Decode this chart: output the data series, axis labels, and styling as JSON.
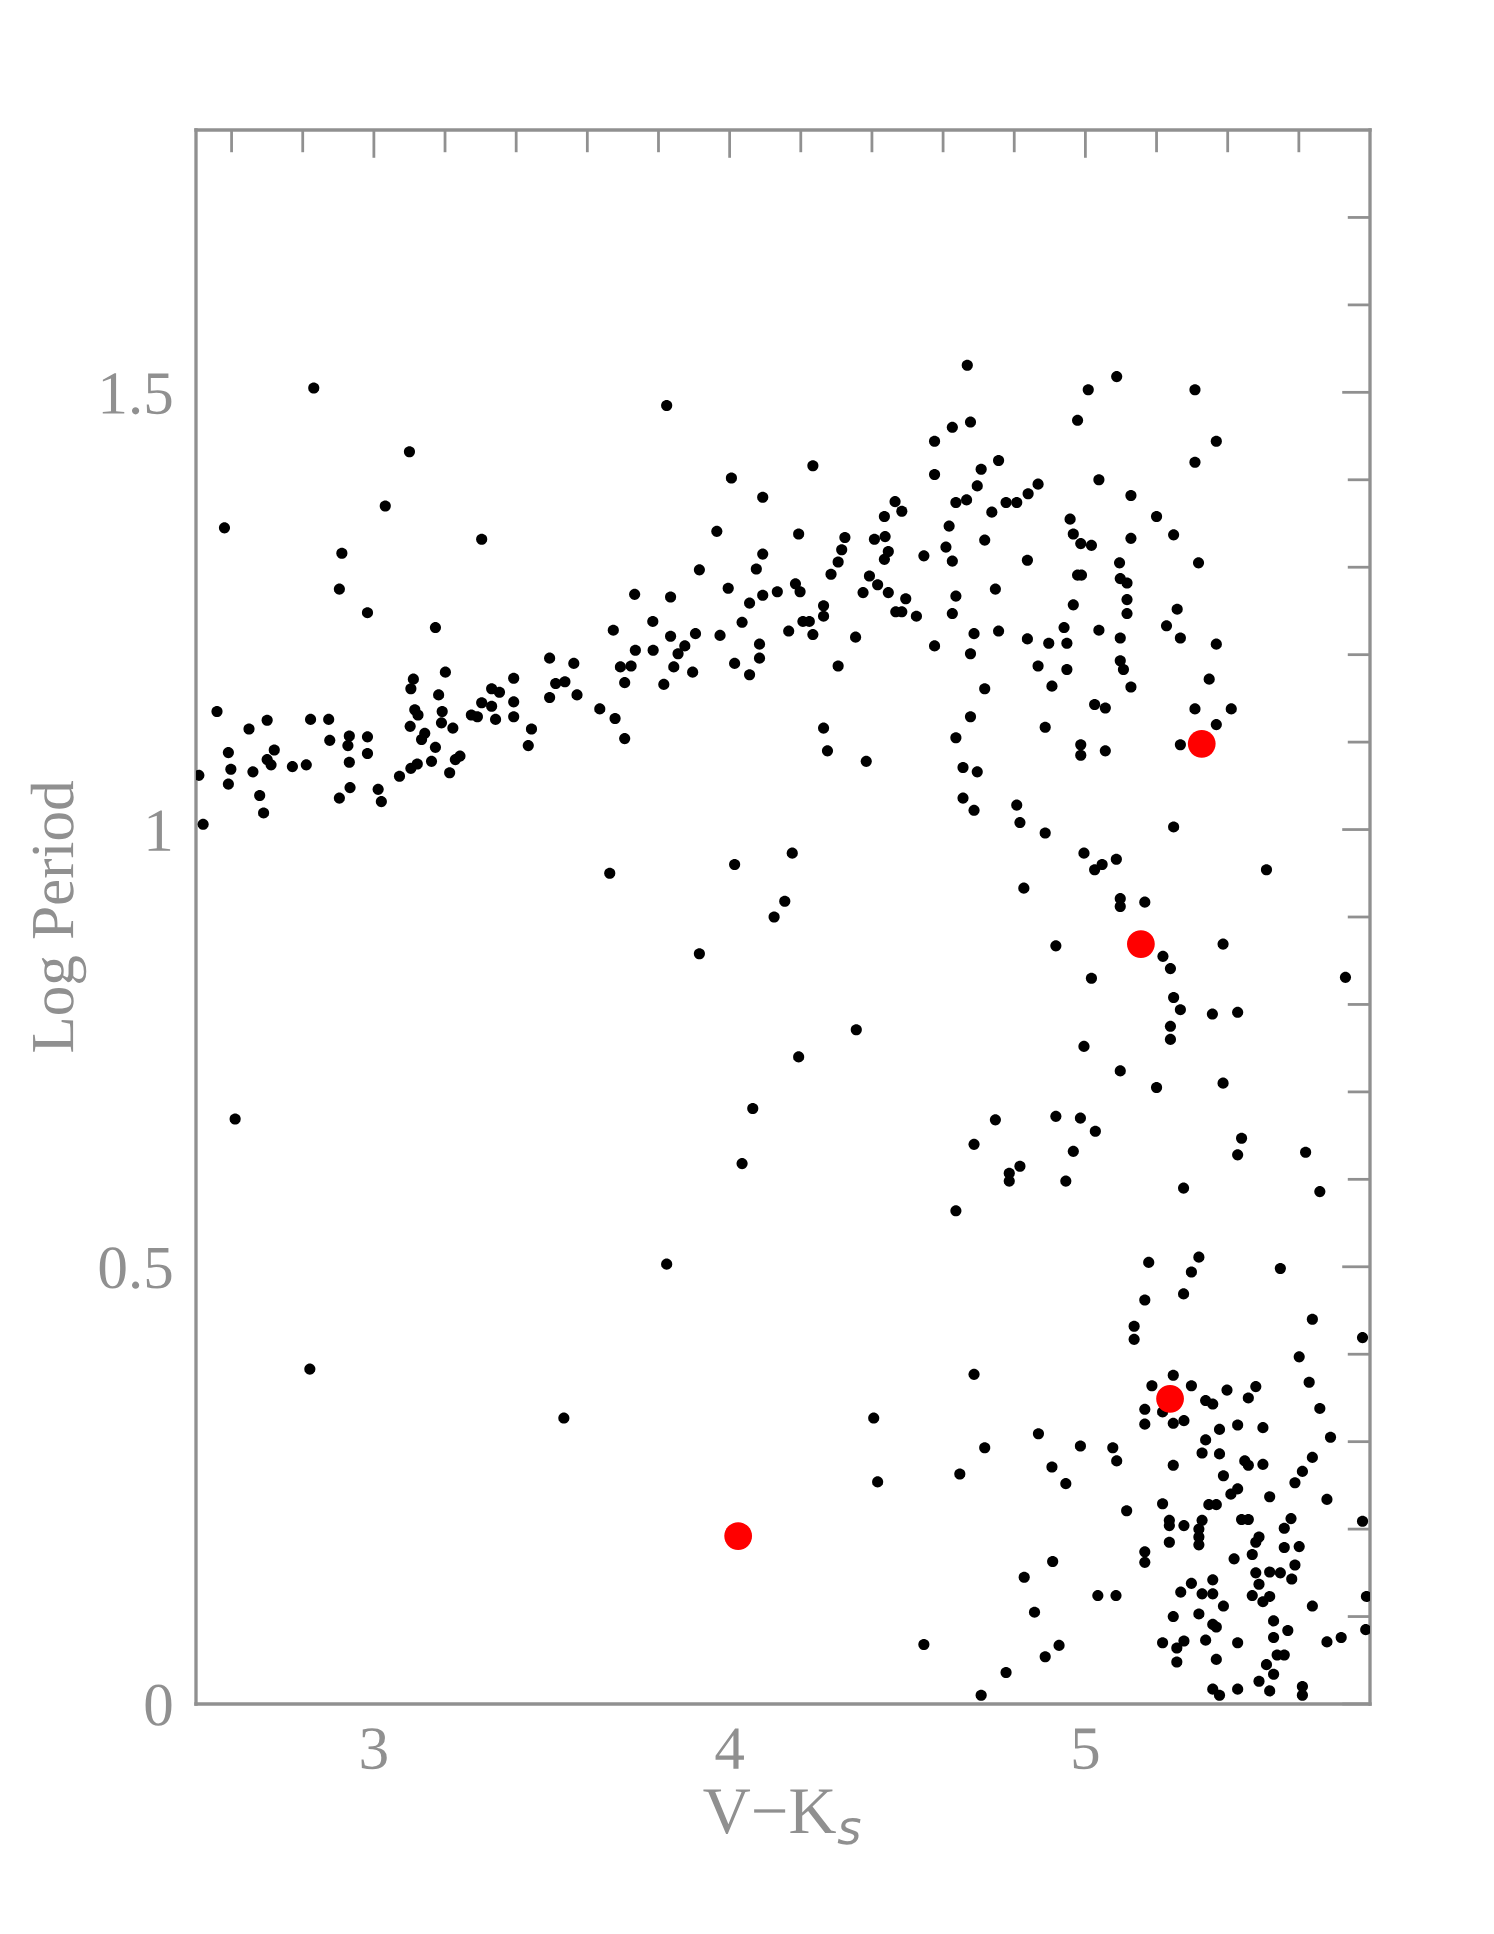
{
  "chart_data": {
    "type": "scatter",
    "xlabel": "V−K$_{s}$",
    "ylabel": "Log Period",
    "xlim": [
      2.5,
      5.8
    ],
    "ylim": [
      0,
      1.8
    ],
    "xticks": [
      {
        "value": 2.6,
        "label": null
      },
      {
        "value": 2.8,
        "label": null
      },
      3,
      {
        "value": 3.2,
        "label": null
      },
      {
        "value": 3.4,
        "label": null
      },
      {
        "value": 3.6,
        "label": null
      },
      {
        "value": 3.8,
        "label": null
      },
      4,
      {
        "value": 4.2,
        "label": null
      },
      {
        "value": 4.4,
        "label": null
      },
      {
        "value": 4.6,
        "label": null
      },
      {
        "value": 4.8,
        "label": null
      },
      5,
      {
        "value": 5.2,
        "label": null
      },
      {
        "value": 5.4,
        "label": null
      },
      {
        "value": 5.6,
        "label": null
      }
    ],
    "yticks": [
      0,
      {
        "value": 0.1,
        "label": null
      },
      {
        "value": 0.2,
        "label": null
      },
      {
        "value": 0.3,
        "label": null
      },
      {
        "value": 0.4,
        "label": null
      },
      0.5,
      {
        "value": 0.6,
        "label": null
      },
      {
        "value": 0.7,
        "label": null
      },
      {
        "value": 0.8,
        "label": null
      },
      {
        "value": 0.9,
        "label": null
      },
      1,
      {
        "value": 1.1,
        "label": null
      },
      {
        "value": 1.2,
        "label": null
      },
      {
        "value": 1.3,
        "label": null
      },
      {
        "value": 1.4,
        "label": null
      },
      1.5,
      {
        "value": 1.6,
        "label": null
      },
      {
        "value": 1.7,
        "label": null
      }
    ],
    "grid": false,
    "legend": false,
    "marker": "circle",
    "series": [
      {
        "color": "#000000",
        "x": [
          2.508,
          2.52,
          2.559,
          2.58,
          2.591,
          2.591,
          2.598,
          2.649,
          2.66,
          2.679,
          2.69,
          2.7,
          2.7,
          2.711,
          2.72,
          2.771,
          2.81,
          2.822,
          2.831,
          2.873,
          2.876,
          2.903,
          2.91,
          2.903,
          2.927,
          2.931,
          2.931,
          2.933,
          2.982,
          2.982,
          2.982,
          3.012,
          3.021,
          3.032,
          3.072,
          3.1,
          3.104,
          3.102,
          3.111,
          3.115,
          3.124,
          3.122,
          3.104,
          3.134,
          3.143,
          3.162,
          3.173,
          3.173,
          3.182,
          3.192,
          3.19,
          3.201,
          3.213,
          3.222,
          3.229,
          3.242,
          3.274,
          3.291,
          3.303,
          3.303,
          3.331,
          3.331,
          3.342,
          3.353,
          3.393,
          3.393,
          3.393,
          3.434,
          3.443,
          3.494,
          3.494,
          3.511,
          3.537,
          3.562,
          3.571,
          3.635,
          3.663,
          3.673,
          3.678,
          3.693,
          3.705,
          3.705,
          3.723,
          3.733,
          3.735,
          3.784,
          3.785,
          3.815,
          3.823,
          3.834,
          3.834,
          3.843,
          3.855,
          3.874,
          3.896,
          3.904,
          3.915,
          3.915,
          3.964,
          3.973,
          3.996,
          4.005,
          4.014,
          4.014,
          4.035,
          4.056,
          4.056,
          4.075,
          4.084,
          4.084,
          4.093,
          4.093,
          4.093,
          2.61,
          2.82,
          3.534,
          3.823,
          4.035,
          4.065,
          4.405,
          4.416,
          4.546,
          4.636,
          4.647,
          4.687,
          4.687,
          4.707,
          4.717,
          4.747,
          4.777,
          4.786,
          4.786,
          4.816,
          4.828,
          4.668,
          5.008,
          5.088,
          4.978,
          4.234,
          4.576,
          4.626,
          4.677,
          4.576,
          4.707,
          4.756,
          4.696,
          4.636,
          4.666,
          4.737,
          4.777,
          4.807,
          4.839,
          4.867,
          5.038,
          5.128,
          4.465,
          4.484,
          4.435,
          4.194,
          4.324,
          4.315,
          4.305,
          4.285,
          4.407,
          4.437,
          4.446,
          4.435,
          4.546,
          4.617,
          4.608,
          4.626,
          4.717,
          4.837,
          4.957,
          4.966,
          4.987,
          5.017,
          5.128,
          5.096,
          4.393,
          4.416,
          4.446,
          4.375,
          4.495,
          4.467,
          4.484,
          4.525,
          4.354,
          4.305,
          4.264,
          4.264,
          4.234,
          4.206,
          4.224,
          4.198,
          4.185,
          4.134,
          4.166,
          4.576,
          4.626,
          4.636,
          4.687,
          4.747,
          4.756,
          4.677,
          4.717,
          4.837,
          4.867,
          4.897,
          4.906,
          4.948,
          4.94,
          4.948,
          4.966,
          4.978,
          4.989,
          5.038,
          5.098,
          5.117,
          5.117,
          5.117,
          5.098,
          5.098,
          5.107,
          5.128,
          5.026,
          5.056,
          4.677,
          4.636,
          4.887,
          4.987,
          4.987,
          5.056,
          4.264,
          4.275,
          4.384,
          4.656,
          4.696,
          4.656,
          4.687,
          4.807,
          4.816,
          4.887,
          4.996,
          5.026,
          5.047,
          5.087,
          5.098,
          5.098,
          4.827,
          4.176,
          4.155,
          4.125,
          4.917,
          5.017,
          4.996,
          5.098,
          4.356,
          4.194,
          5.308,
          5.368,
          5.308,
          5.2,
          5.248,
          5.318,
          5.258,
          5.228,
          5.267,
          5.368,
          5.348,
          5.308,
          5.41,
          5.368,
          5.267,
          5.248,
          5.509,
          5.167,
          5.387,
          5.218,
          5.239,
          5.248,
          5.267,
          5.357,
          5.428,
          5.239,
          5.239,
          5.731,
          5.2,
          5.387,
          4.917,
          4.986,
          5.028,
          4.966,
          4.945,
          5.439,
          5.428,
          5.619,
          5.659,
          5.276,
          5.178,
          5.319,
          5.298,
          5.276,
          5.167,
          5.137,
          5.137,
          5.548,
          5.638,
          5.779,
          5.601,
          5.629,
          5.659,
          5.689,
          5.638,
          5.61,
          5.589,
          5.679,
          5.779,
          5.247,
          5.187,
          5.298,
          5.167,
          5.167,
          5.217,
          5.247,
          5.277,
          5.338,
          5.358,
          5.398,
          5.458,
          5.479,
          5.377,
          5.428,
          5.499,
          4.868,
          4.986,
          5.077,
          5.088,
          4.906,
          4.945,
          5.247,
          5.328,
          5.338,
          5.377,
          5.388,
          5.448,
          5.458,
          5.499,
          5.409,
          5.428,
          5.518,
          5.116,
          5.217,
          5.236,
          5.236,
          5.277,
          5.236,
          5.319,
          5.328,
          5.347,
          5.368,
          5.319,
          5.319,
          5.439,
          5.458,
          5.578,
          5.559,
          5.488,
          5.479,
          5.559,
          5.601,
          5.167,
          5.167,
          5.418,
          5.469,
          5.479,
          5.518,
          5.548,
          5.589,
          5.58,
          5.488,
          5.358,
          5.298,
          5.268,
          5.328,
          5.358,
          5.469,
          5.499,
          5.518,
          5.388,
          5.035,
          5.086,
          4.908,
          4.857,
          5.247,
          5.319,
          5.358,
          5.368,
          5.529,
          5.529,
          5.569,
          5.638,
          5.79,
          5.788,
          5.679,
          5.719,
          5.217,
          5.257,
          5.277,
          5.257,
          5.338,
          5.368,
          5.428,
          5.539,
          5.559,
          5.509,
          5.529,
          5.488,
          5.518,
          5.61,
          5.61,
          5.358,
          5.377,
          5.428,
          4.887,
          4.926
        ],
        "values": [
          1.062,
          1.006,
          1.135,
          1.345,
          1.088,
          1.052,
          1.069,
          1.115,
          1.066,
          1.039,
          1.019,
          1.125,
          1.08,
          1.074,
          1.091,
          1.072,
          1.074,
          1.126,
          1.505,
          1.126,
          1.102,
          1.036,
          1.316,
          1.275,
          1.096,
          1.107,
          1.077,
          1.048,
          1.248,
          1.106,
          1.087,
          1.046,
          1.032,
          1.37,
          1.061,
          1.432,
          1.161,
          1.118,
          1.172,
          1.137,
          1.131,
          1.075,
          1.07,
          1.103,
          1.11,
          1.078,
          1.231,
          1.094,
          1.154,
          1.135,
          1.122,
          1.18,
          1.065,
          1.116,
          1.08,
          1.084,
          1.131,
          1.129,
          1.332,
          1.145,
          1.141,
          1.161,
          1.126,
          1.157,
          1.173,
          1.146,
          1.129,
          1.096,
          1.115,
          1.196,
          1.151,
          1.167,
          1.169,
          1.19,
          1.154,
          1.138,
          0.95,
          1.228,
          1.127,
          1.186,
          1.104,
          1.168,
          1.187,
          1.269,
          1.205,
          1.238,
          1.205,
          1.166,
          1.485,
          1.266,
          1.221,
          1.186,
          1.201,
          1.21,
          1.18,
          1.224,
          1.297,
          0.858,
          1.341,
          1.222,
          1.276,
          1.402,
          1.19,
          0.96,
          1.237,
          1.259,
          1.177,
          1.298,
          1.212,
          1.196,
          1.38,
          1.315,
          1.268,
          0.669,
          0.383,
          0.327,
          0.503,
          0.618,
          0.681,
          0.327,
          0.254,
          0.068,
          0.564,
          0.263,
          0.64,
          0.377,
          0.01,
          0.293,
          0.668,
          0.036,
          0.607,
          0.598,
          0.615,
          0.145,
          1.531,
          1.503,
          1.518,
          1.468,
          1.416,
          1.444,
          1.46,
          1.466,
          1.406,
          1.412,
          1.422,
          1.393,
          1.374,
          1.377,
          1.363,
          1.374,
          1.374,
          1.384,
          1.395,
          1.4,
          1.382,
          1.375,
          1.364,
          1.358,
          1.338,
          1.334,
          1.32,
          1.306,
          1.292,
          1.332,
          1.335,
          1.318,
          1.309,
          1.313,
          1.347,
          1.323,
          1.307,
          1.331,
          1.308,
          1.355,
          1.338,
          1.327,
          1.325,
          1.333,
          1.305,
          1.29,
          1.28,
          1.271,
          1.271,
          1.264,
          1.249,
          1.249,
          1.244,
          1.22,
          1.187,
          1.256,
          1.244,
          1.223,
          1.238,
          1.238,
          1.272,
          1.281,
          1.272,
          1.227,
          1.21,
          1.247,
          1.267,
          1.224,
          1.275,
          1.227,
          1.201,
          1.161,
          1.218,
          1.187,
          1.213,
          1.164,
          1.213,
          1.231,
          1.183,
          1.257,
          1.291,
          1.291,
          1.228,
          1.287,
          1.282,
          1.263,
          1.247,
          1.219,
          1.193,
          1.183,
          1.163,
          1.143,
          1.139,
          1.129,
          1.105,
          1.117,
          1.097,
          1.085,
          1.09,
          1.116,
          1.09,
          1.078,
          1.071,
          1.066,
          1.036,
          1.022,
          1.028,
          1.008,
          0.996,
          0.973,
          0.954,
          0.96,
          0.966,
          0.921,
          0.912,
          0.933,
          0.973,
          0.918,
          0.9,
          0.867,
          0.83,
          0.752,
          0.724,
          0.771,
          0.74,
          1.503,
          1.444,
          1.42,
          1.358,
          1.337,
          1.305,
          1.252,
          1.233,
          1.219,
          1.212,
          1.172,
          1.138,
          1.138,
          1.12,
          1.097,
          1.003,
          0.954,
          0.917,
          0.869,
          0.855,
          0.841,
          0.808,
          0.794,
          0.789,
          0.791,
          0.775,
          0.76,
          0.831,
          0.705,
          0.71,
          0.672,
          0.67,
          0.655,
          0.632,
          0.598,
          0.647,
          0.628,
          0.631,
          0.586,
          0.59,
          0.505,
          0.511,
          0.494,
          0.469,
          0.462,
          0.432,
          0.417,
          0.498,
          0.44,
          0.419,
          0.397,
          0.368,
          0.338,
          0.305,
          0.282,
          0.266,
          0.253,
          0.234,
          0.209,
          0.376,
          0.364,
          0.364,
          0.337,
          0.32,
          0.334,
          0.321,
          0.324,
          0.347,
          0.343,
          0.359,
          0.35,
          0.363,
          0.314,
          0.319,
          0.316,
          0.309,
          0.295,
          0.293,
          0.278,
          0.271,
          0.252,
          0.273,
          0.287,
          0.302,
          0.286,
          0.261,
          0.278,
          0.273,
          0.274,
          0.24,
          0.246,
          0.237,
          0.221,
          0.229,
          0.21,
          0.204,
          0.204,
          0.185,
          0.2,
          0.21,
          0.228,
          0.228,
          0.191,
          0.182,
          0.211,
          0.211,
          0.212,
          0.201,
          0.191,
          0.185,
          0.179,
          0.18,
          0.174,
          0.162,
          0.166,
          0.171,
          0.15,
          0.151,
          0.15,
          0.159,
          0.143,
          0.137,
          0.142,
          0.138,
          0.128,
          0.126,
          0.126,
          0.124,
          0.117,
          0.123,
          0.112,
          0.124,
          0.124,
          0.163,
          0.105,
          0.1,
          0.103,
          0.091,
          0.088,
          0.095,
          0.076,
          0.084,
          0.112,
          0.123,
          0.085,
          0.071,
          0.076,
          0.07,
          0.064,
          0.072,
          0.048,
          0.073,
          0.051,
          0.07,
          0.056,
          0.056,
          0.045,
          0.034,
          0.026,
          0.015,
          0.02,
          0.01,
          0.017,
          0.01,
          0.017,
          0.054,
          0.067
        ]
      },
      {
        "color": "#ff0000",
        "x": [
          4.024,
          5.327,
          5.156,
          5.238
        ],
        "values": [
          0.192,
          1.098,
          0.869,
          0.349
        ]
      }
    ]
  }
}
